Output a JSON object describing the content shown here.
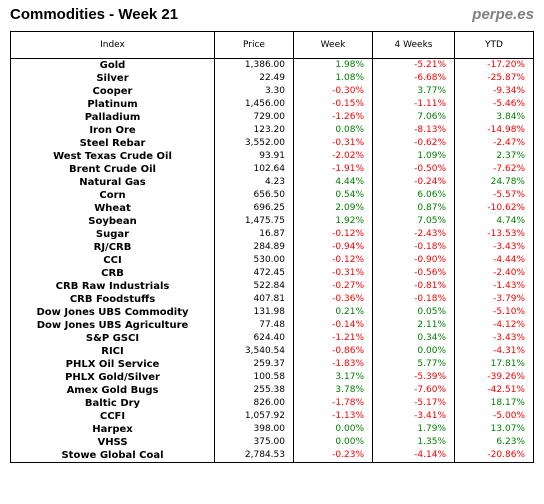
{
  "title": "Commodities - Week 21",
  "brand": "perpe.es",
  "colors": {
    "positive": "#008000",
    "negative": "#ff0000"
  },
  "columns": [
    "Index",
    "Price",
    "Week",
    "4 Weeks",
    "YTD"
  ],
  "rows": [
    {
      "name": "Gold",
      "price": "1,386.00",
      "week": "1.98%",
      "w4": "-5.21%",
      "ytd": "-17.20%"
    },
    {
      "name": "Silver",
      "price": "22.49",
      "week": "1.08%",
      "w4": "-6.68%",
      "ytd": "-25.87%"
    },
    {
      "name": "Cooper",
      "price": "3.30",
      "week": "-0.30%",
      "w4": "3.77%",
      "ytd": "-9.34%"
    },
    {
      "name": "Platinum",
      "price": "1,456.00",
      "week": "-0.15%",
      "w4": "-1.11%",
      "ytd": "-5.46%"
    },
    {
      "name": "Palladium",
      "price": "729.00",
      "week": "-1.26%",
      "w4": "7.06%",
      "ytd": "3.84%"
    },
    {
      "name": "Iron Ore",
      "price": "123.20",
      "week": "0.08%",
      "w4": "-8.13%",
      "ytd": "-14.98%"
    },
    {
      "name": "Steel Rebar",
      "price": "3,552.00",
      "week": "-0.31%",
      "w4": "-0.62%",
      "ytd": "-2.47%"
    },
    {
      "name": "West Texas Crude Oil",
      "price": "93.91",
      "week": "-2.02%",
      "w4": "1.09%",
      "ytd": "2.37%"
    },
    {
      "name": "Brent Crude Oil",
      "price": "102.64",
      "week": "-1.91%",
      "w4": "-0.50%",
      "ytd": "-7.62%"
    },
    {
      "name": "Natural Gas",
      "price": "4.23",
      "week": "4.44%",
      "w4": "-0.24%",
      "ytd": "24.78%"
    },
    {
      "name": "Corn",
      "price": "656.50",
      "week": "0.54%",
      "w4": "6.06%",
      "ytd": "-5.57%"
    },
    {
      "name": "Wheat",
      "price": "696.25",
      "week": "2.09%",
      "w4": "0.87%",
      "ytd": "-10.62%"
    },
    {
      "name": "Soybean",
      "price": "1,475.75",
      "week": "1.92%",
      "w4": "7.05%",
      "ytd": "4.74%"
    },
    {
      "name": "Sugar",
      "price": "16.87",
      "week": "-0.12%",
      "w4": "-2.43%",
      "ytd": "-13.53%"
    },
    {
      "name": "RJ/CRB",
      "price": "284.89",
      "week": "-0.94%",
      "w4": "-0.18%",
      "ytd": "-3.43%"
    },
    {
      "name": "CCI",
      "price": "530.00",
      "week": "-0.12%",
      "w4": "-0.90%",
      "ytd": "-4.44%"
    },
    {
      "name": "CRB",
      "price": "472.45",
      "week": "-0.31%",
      "w4": "-0.56%",
      "ytd": "-2.40%"
    },
    {
      "name": "CRB Raw Industrials",
      "price": "522.84",
      "week": "-0.27%",
      "w4": "-0.81%",
      "ytd": "-1.43%"
    },
    {
      "name": "CRB Foodstuffs",
      "price": "407.81",
      "week": "-0.36%",
      "w4": "-0.18%",
      "ytd": "-3.79%"
    },
    {
      "name": "Dow Jones UBS Commodity",
      "price": "131.98",
      "week": "0.21%",
      "w4": "0.05%",
      "ytd": "-5.10%"
    },
    {
      "name": "Dow Jones UBS Agriculture",
      "price": "77.48",
      "week": "-0.14%",
      "w4": "2.11%",
      "ytd": "-4.12%"
    },
    {
      "name": "S&P GSCI",
      "price": "624.40",
      "week": "-1.21%",
      "w4": "0.34%",
      "ytd": "-3.43%"
    },
    {
      "name": "RICI",
      "price": "3,540.54",
      "week": "-0.86%",
      "w4": "0.00%",
      "ytd": "-4.31%"
    },
    {
      "name": "PHLX Oil Service",
      "price": "259.37",
      "week": "-1.83%",
      "w4": "5.77%",
      "ytd": "17.81%"
    },
    {
      "name": "PHLX Gold/Silver",
      "price": "100.58",
      "week": "3.17%",
      "w4": "-5.39%",
      "ytd": "-39.26%"
    },
    {
      "name": "Amex Gold Bugs",
      "price": "255.38",
      "week": "3.78%",
      "w4": "-7.60%",
      "ytd": "-42.51%"
    },
    {
      "name": "Baltic Dry",
      "price": "826.00",
      "week": "-1.78%",
      "w4": "-5.17%",
      "ytd": "18.17%"
    },
    {
      "name": "CCFI",
      "price": "1,057.92",
      "week": "-1.13%",
      "w4": "-3.41%",
      "ytd": "-5.00%"
    },
    {
      "name": "Harpex",
      "price": "398.00",
      "week": "0.00%",
      "w4": "1.79%",
      "ytd": "13.07%"
    },
    {
      "name": "VHSS",
      "price": "375.00",
      "week": "0.00%",
      "w4": "1.35%",
      "ytd": "6.23%"
    },
    {
      "name": "Stowe Global Coal",
      "price": "2,784.53",
      "week": "-0.23%",
      "w4": "-4.14%",
      "ytd": "-20.86%"
    }
  ]
}
